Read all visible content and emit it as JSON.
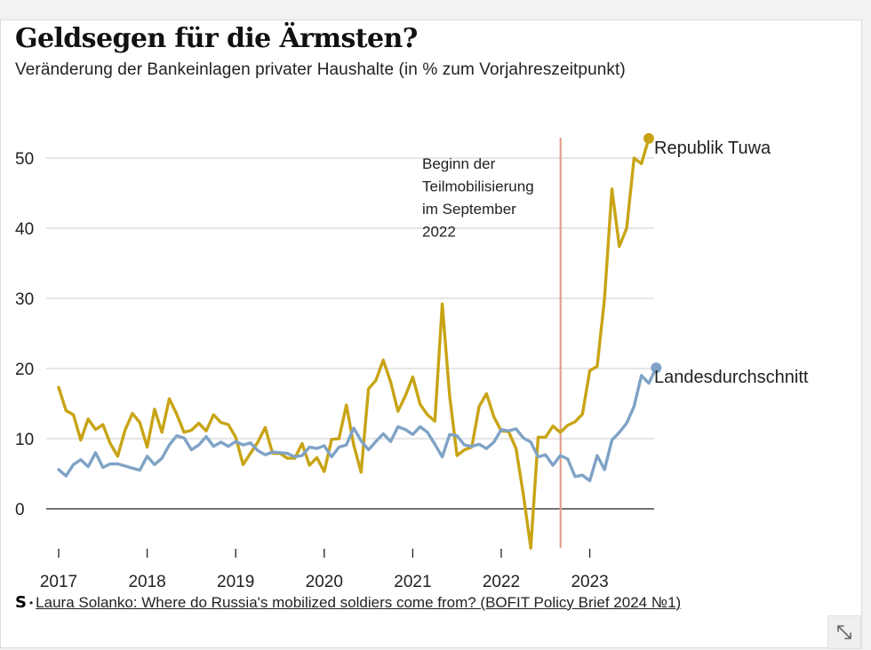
{
  "header": {
    "title": "Geldsegen für die Ärmsten?",
    "subtitle": "Veränderung der Bankeinlagen privater Haushalte (in % zum Vorjahreszeitpunkt)"
  },
  "chart_data": {
    "type": "line",
    "title": "Geldsegen für die Ärmsten?",
    "subtitle": "Veränderung der Bankeinlagen privater Haushalte (in % zum Vorjahreszeitpunkt)",
    "xlabel": "",
    "ylabel": "",
    "ylim": [
      -6,
      55
    ],
    "yticks": [
      0,
      10,
      20,
      30,
      40,
      50
    ],
    "year_labels": [
      "2017",
      "2018",
      "2019",
      "2020",
      "2021",
      "2022",
      "2023"
    ],
    "x_start_year": 2017,
    "grid": true,
    "annotation": {
      "text_lines": [
        "Beginn der",
        "Teilmobilisierung",
        "im September",
        "2022"
      ],
      "x": 2022.67
    },
    "series": [
      {
        "name": "Republik Tuwa",
        "label": "Republik Tuwa",
        "color": "#c8a415",
        "values": [
          17.3,
          14,
          13.4,
          9.8,
          12.8,
          11.3,
          12,
          9.3,
          7.5,
          11.2,
          13.6,
          12.3,
          8.8,
          14.2,
          10.9,
          15.7,
          13.5,
          10.9,
          11.2,
          12.2,
          11.1,
          13.4,
          12.3,
          12,
          10.2,
          6.3,
          7.9,
          9.5,
          11.6,
          7.9,
          7.9,
          7.2,
          7.2,
          9.3,
          6.2,
          7.3,
          5.3,
          9.9,
          10,
          14.8,
          9.1,
          5.2,
          17.1,
          18.3,
          21.2,
          18.1,
          13.9,
          16.1,
          18.8,
          14.9,
          13.4,
          12.5,
          29.2,
          16.1,
          7.6,
          8.4,
          8.8,
          14.6,
          16.4,
          13.1,
          11.1,
          11,
          8.6,
          2,
          -5.6,
          10.2,
          10.2,
          11.8,
          10.9,
          11.9,
          12.4,
          13.5,
          19.7,
          20.3,
          30,
          45.6,
          37.4,
          40,
          50,
          49.2,
          52.8
        ]
      },
      {
        "name": "Landesdurchschnitt",
        "label": "Landesdurchschnitt",
        "color": "#7fa3c6",
        "values": [
          5.6,
          4.7,
          6.3,
          7,
          6,
          8,
          5.9,
          6.4,
          6.4,
          6.1,
          5.8,
          5.5,
          7.5,
          6.3,
          7.2,
          9.1,
          10.4,
          10.1,
          8.4,
          9.1,
          10.3,
          8.9,
          9.5,
          8.9,
          9.6,
          9.1,
          9.4,
          8.3,
          7.7,
          8.1,
          8,
          7.9,
          7.4,
          7.6,
          8.8,
          8.6,
          9,
          7.4,
          8.8,
          9.1,
          11.5,
          9.7,
          8.4,
          9.6,
          10.7,
          9.6,
          11.7,
          11.3,
          10.6,
          11.7,
          10.9,
          9.2,
          7.4,
          10.6,
          10.4,
          9.1,
          8.9,
          9.2,
          8.6,
          9.5,
          11.3,
          11.1,
          11.4,
          10.1,
          9.5,
          7.4,
          7.7,
          6.2,
          7.6,
          7.1,
          4.6,
          4.8,
          4,
          7.6,
          5.6,
          9.8,
          10.9,
          12.2,
          14.6,
          19,
          17.9,
          20.1
        ]
      }
    ]
  },
  "source": {
    "logo": "S",
    "bullet": "•",
    "link_text": "Laura Solanko: Where do Russia's mobilized soldiers come from? (BOFIT Policy Brief 2024 №1)"
  },
  "colors": {
    "tuwa": "#c8a415",
    "average": "#7fa3c6",
    "mobilization_line": "#e2a08a",
    "grid": "#cccccc",
    "zero_line": "#222222"
  }
}
